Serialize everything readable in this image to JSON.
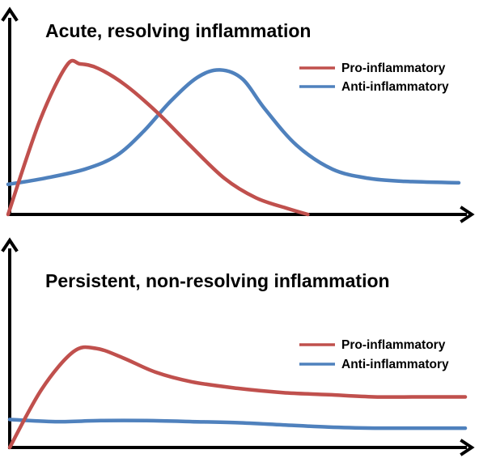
{
  "colors": {
    "pro": "#c0504d",
    "anti": "#4f81bd",
    "axis": "#000000"
  },
  "chart_data": [
    {
      "type": "line",
      "title": "Acute, resolving inflammation",
      "xlabel": "",
      "ylabel": "",
      "xlim": [
        0,
        100
      ],
      "ylim": [
        0,
        100
      ],
      "grid": false,
      "legend": "top-right",
      "series": [
        {
          "name": "Pro-inflammatory",
          "color": "#c0504d",
          "x": [
            0,
            7,
            13,
            16,
            20,
            26,
            33,
            40,
            48,
            55,
            62,
            66.5
          ],
          "y": [
            0,
            62,
            99,
            100,
            97,
            86,
            68,
            47,
            24,
            11,
            4,
            0
          ]
        },
        {
          "name": "Anti-inflammatory",
          "color": "#4f81bd",
          "x": [
            0,
            8,
            17,
            24,
            30,
            36,
            42,
            47,
            52,
            57,
            64,
            72,
            80,
            88,
            100
          ],
          "y": [
            20,
            24,
            30,
            39,
            55,
            75,
            91,
            96,
            90,
            70,
            46,
            30,
            24,
            22,
            21
          ]
        }
      ]
    },
    {
      "type": "line",
      "title": "Persistent, non-resolving inflammation",
      "xlabel": "",
      "ylabel": "",
      "xlim": [
        0,
        100
      ],
      "ylim": [
        0,
        100
      ],
      "grid": false,
      "legend": "right",
      "series": [
        {
          "name": "Pro-inflammatory",
          "color": "#c0504d",
          "x": [
            0,
            7,
            14,
            19,
            25,
            32,
            40,
            50,
            60,
            70,
            80,
            90,
            100
          ],
          "y": [
            0,
            54,
            89,
            92,
            83,
            70,
            61,
            55,
            51,
            49,
            47,
            47,
            47
          ]
        },
        {
          "name": "Anti-inflammatory",
          "color": "#4f81bd",
          "x": [
            0,
            10,
            20,
            30,
            40,
            50,
            60,
            70,
            80,
            90,
            100
          ],
          "y": [
            26,
            24,
            25,
            25,
            24,
            23,
            21,
            19,
            18,
            18,
            18
          ]
        }
      ]
    }
  ]
}
